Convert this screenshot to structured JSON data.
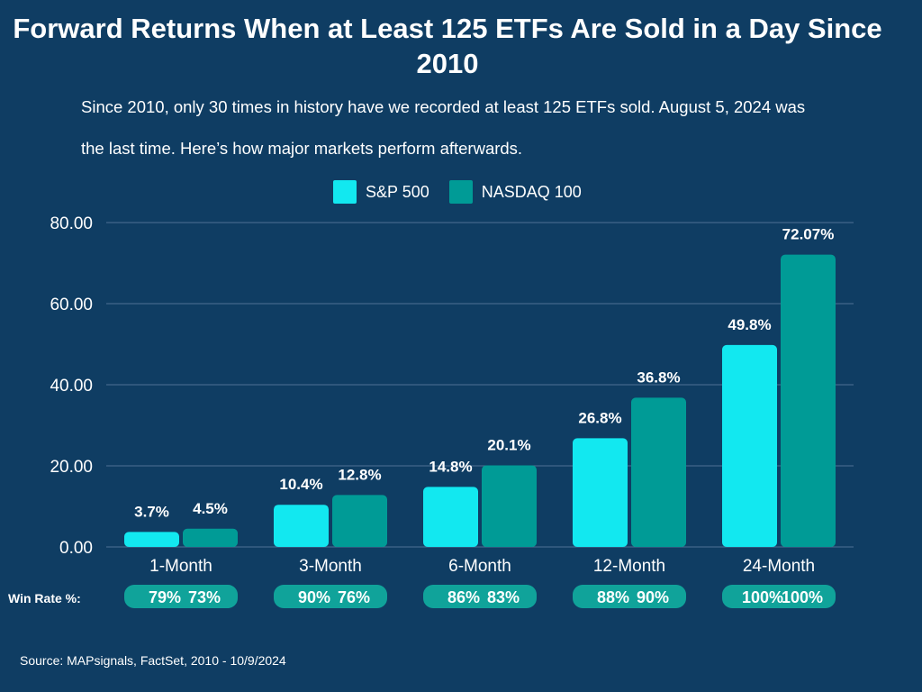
{
  "title": "Forward Returns When at Least 125 ETFs Are Sold in a Day Since 2010",
  "subtitle": "Since 2010, only 30 times in history have we recorded at least 125 ETFs sold. August 5, 2024 was the last time. Here’s how major markets perform afterwards.",
  "source": "Source: MAPsignals, FactSet, 2010 - 10/9/2024",
  "colors": {
    "background": "#0f3d63",
    "sp500": "#12e8f0",
    "nasdaq": "#009b96",
    "gridline": "#4f7194",
    "pill": "#10a39a"
  },
  "chart_data": {
    "type": "bar",
    "categories": [
      "1-Month",
      "3-Month",
      "6-Month",
      "12-Month",
      "24-Month"
    ],
    "series": [
      {
        "name": "S&P 500",
        "values": [
          3.7,
          10.4,
          14.8,
          26.8,
          49.8
        ],
        "labels": [
          "3.7%",
          "10.4%",
          "14.8%",
          "26.8%",
          "49.8%"
        ]
      },
      {
        "name": "NASDAQ 100",
        "values": [
          4.5,
          12.8,
          20.1,
          36.8,
          72.07
        ],
        "labels": [
          "4.5%",
          "12.8%",
          "20.1%",
          "36.8%",
          "72.07%"
        ]
      }
    ],
    "ylim": [
      0,
      80
    ],
    "yticks": [
      "0.00",
      "20.00",
      "40.00",
      "60.00",
      "80.00"
    ],
    "legend": "top-center",
    "grid": true,
    "win_rate_label": "Win Rate %:",
    "win_rates": [
      {
        "sp500": "79%",
        "nasdaq": "73%"
      },
      {
        "sp500": "90%",
        "nasdaq": "76%"
      },
      {
        "sp500": "86%",
        "nasdaq": "83%"
      },
      {
        "sp500": "88%",
        "nasdaq": "90%"
      },
      {
        "sp500": "100%",
        "nasdaq": "100%"
      }
    ]
  }
}
